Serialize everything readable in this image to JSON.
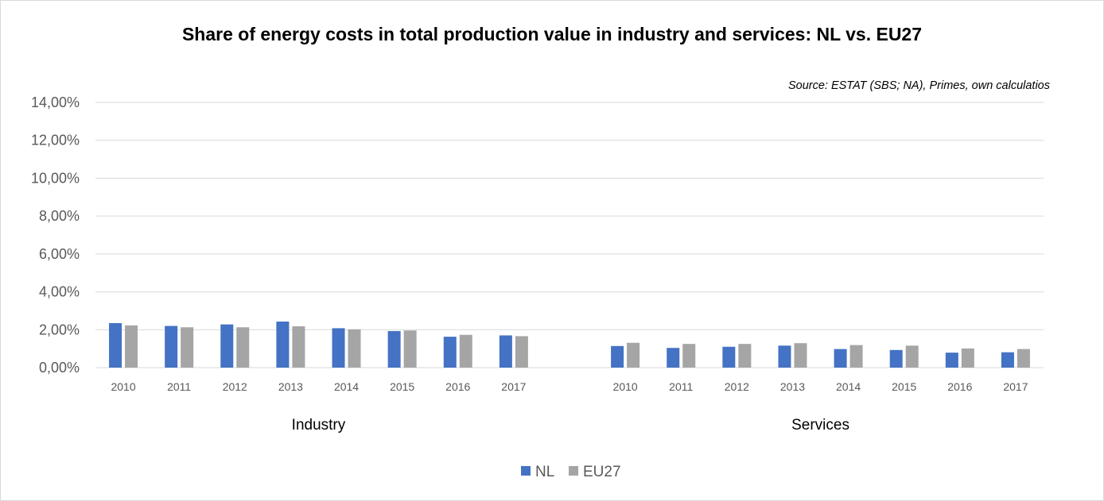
{
  "chart_data": {
    "type": "bar",
    "title": "Share of energy costs in total production value in industry and services: NL vs. EU27",
    "annotation": "Source: ESTAT (SBS; NA), Primes, own calculatios",
    "groups": [
      {
        "name": "Industry",
        "categories": [
          "2010",
          "2011",
          "2012",
          "2013",
          "2014",
          "2015",
          "2016",
          "2017"
        ],
        "series": [
          {
            "name": "NL",
            "values": [
              0.0235,
              0.022,
              0.0228,
              0.0243,
              0.0208,
              0.0193,
              0.0163,
              0.017
            ]
          },
          {
            "name": "EU27",
            "values": [
              0.0223,
              0.0213,
              0.0213,
              0.0218,
              0.0202,
              0.0196,
              0.0173,
              0.0166
            ]
          }
        ]
      },
      {
        "name": "Services",
        "categories": [
          "2010",
          "2011",
          "2012",
          "2013",
          "2014",
          "2015",
          "2016",
          "2017"
        ],
        "series": [
          {
            "name": "NL",
            "values": [
              0.0114,
              0.0104,
              0.011,
              0.0116,
              0.0098,
              0.0093,
              0.0079,
              0.0081
            ]
          },
          {
            "name": "EU27",
            "values": [
              0.0131,
              0.0125,
              0.0125,
              0.0129,
              0.0119,
              0.0116,
              0.0101,
              0.0098
            ]
          }
        ]
      }
    ],
    "ylim": [
      0,
      0.14
    ],
    "yticks": [
      "0,00%",
      "2,00%",
      "4,00%",
      "6,00%",
      "8,00%",
      "10,00%",
      "12,00%",
      "14,00%"
    ],
    "colors": {
      "NL": "#4472c4",
      "EU27": "#a5a5a5"
    },
    "grid": true,
    "legend": "bottom-center"
  }
}
